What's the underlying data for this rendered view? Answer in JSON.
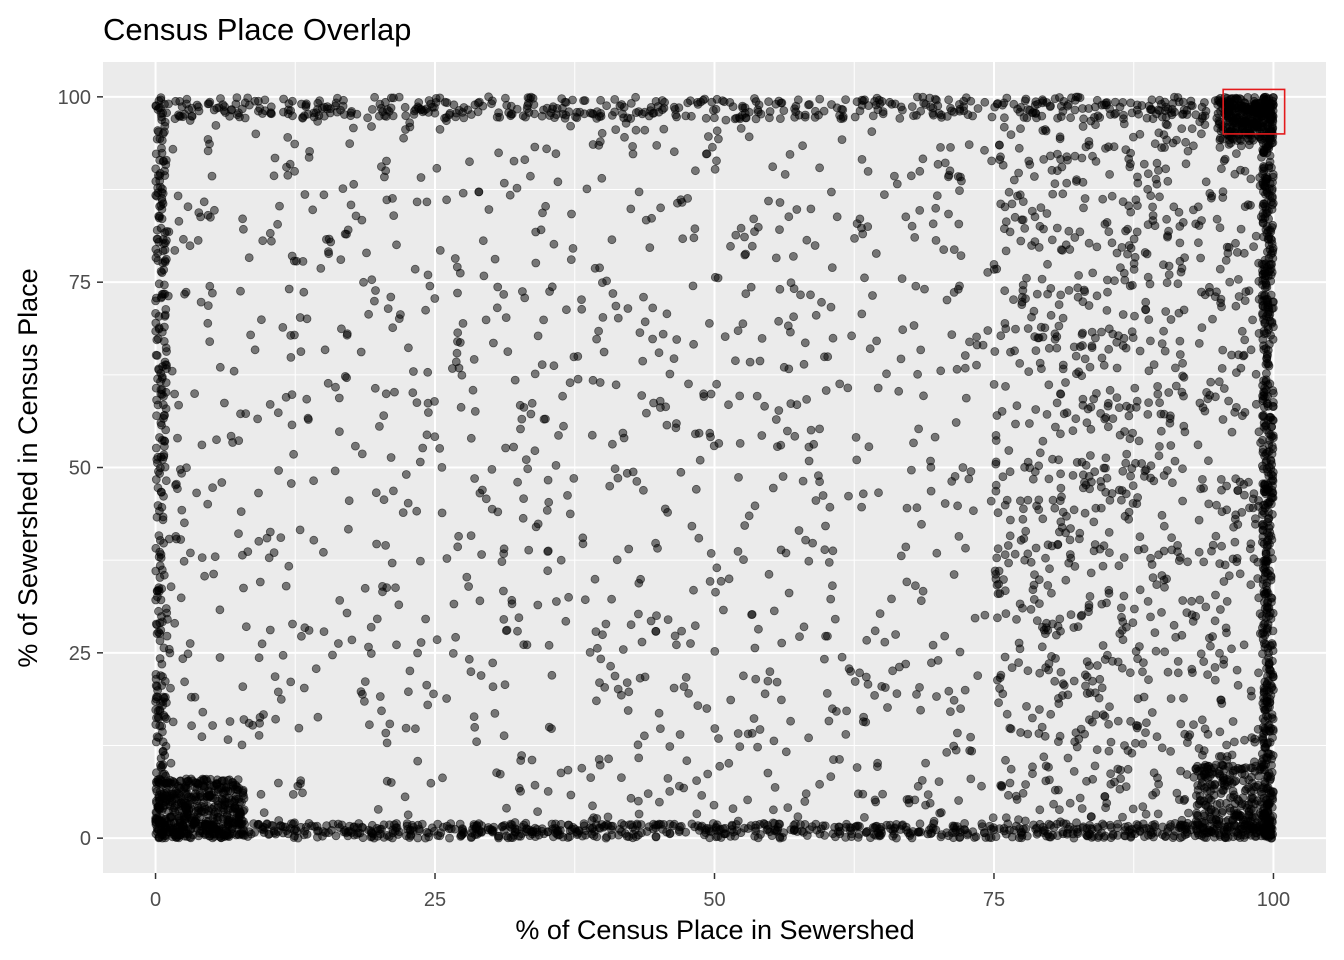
{
  "chart_data": {
    "type": "scatter",
    "title": "Census Place Overlap",
    "xlabel": "% of Census Place in Sewershed",
    "ylabel": "% of Sewershed in Census Place",
    "xlim": [
      -4.7,
      104.7
    ],
    "ylim": [
      -4.7,
      104.7
    ],
    "x_ticks": [
      0,
      25,
      50,
      75,
      100
    ],
    "y_ticks": [
      0,
      25,
      50,
      75,
      100
    ],
    "x_tick_labels": [
      "0",
      "25",
      "50",
      "75",
      "100"
    ],
    "y_tick_labels": [
      "0",
      "25",
      "50",
      "75",
      "100"
    ],
    "grid": true,
    "legend": "none",
    "colors": {
      "panel_background": "#ebebeb",
      "grid": "#ffffff",
      "point": "#000000",
      "highlight_box": "#e31a1c"
    },
    "point_opacity": 0.5,
    "point_count_estimate": 5200,
    "highlight_region": {
      "x": [
        95.5,
        101.0
      ],
      "y": [
        95.0,
        101.0
      ]
    },
    "density_regions": [
      {
        "region": "bottom edge (y near 0)",
        "x": [
          0,
          100
        ],
        "y": [
          0,
          2
        ],
        "weight": 0.14
      },
      {
        "region": "bottom-left corner",
        "x": [
          0,
          8
        ],
        "y": [
          0,
          8
        ],
        "weight": 0.08
      },
      {
        "region": "bottom-right corner",
        "x": [
          93,
          100
        ],
        "y": [
          0,
          10
        ],
        "weight": 0.05
      },
      {
        "region": "top edge (y near 100)",
        "x": [
          0,
          100
        ],
        "y": [
          97,
          100
        ],
        "weight": 0.09
      },
      {
        "region": "top-right corner",
        "x": [
          95,
          100
        ],
        "y": [
          94,
          100
        ],
        "weight": 0.05
      },
      {
        "region": "right edge (x near 100)",
        "x": [
          99,
          100
        ],
        "y": [
          0,
          100
        ],
        "weight": 0.1
      },
      {
        "region": "left edge (x near 0)",
        "x": [
          0,
          1
        ],
        "y": [
          0,
          100
        ],
        "weight": 0.05
      },
      {
        "region": "right band",
        "x": [
          75,
          100
        ],
        "y": [
          0,
          100
        ],
        "weight": 0.14
      },
      {
        "region": "interior scatter",
        "x": [
          0,
          100
        ],
        "y": [
          0,
          100
        ],
        "weight": 0.3
      }
    ]
  }
}
